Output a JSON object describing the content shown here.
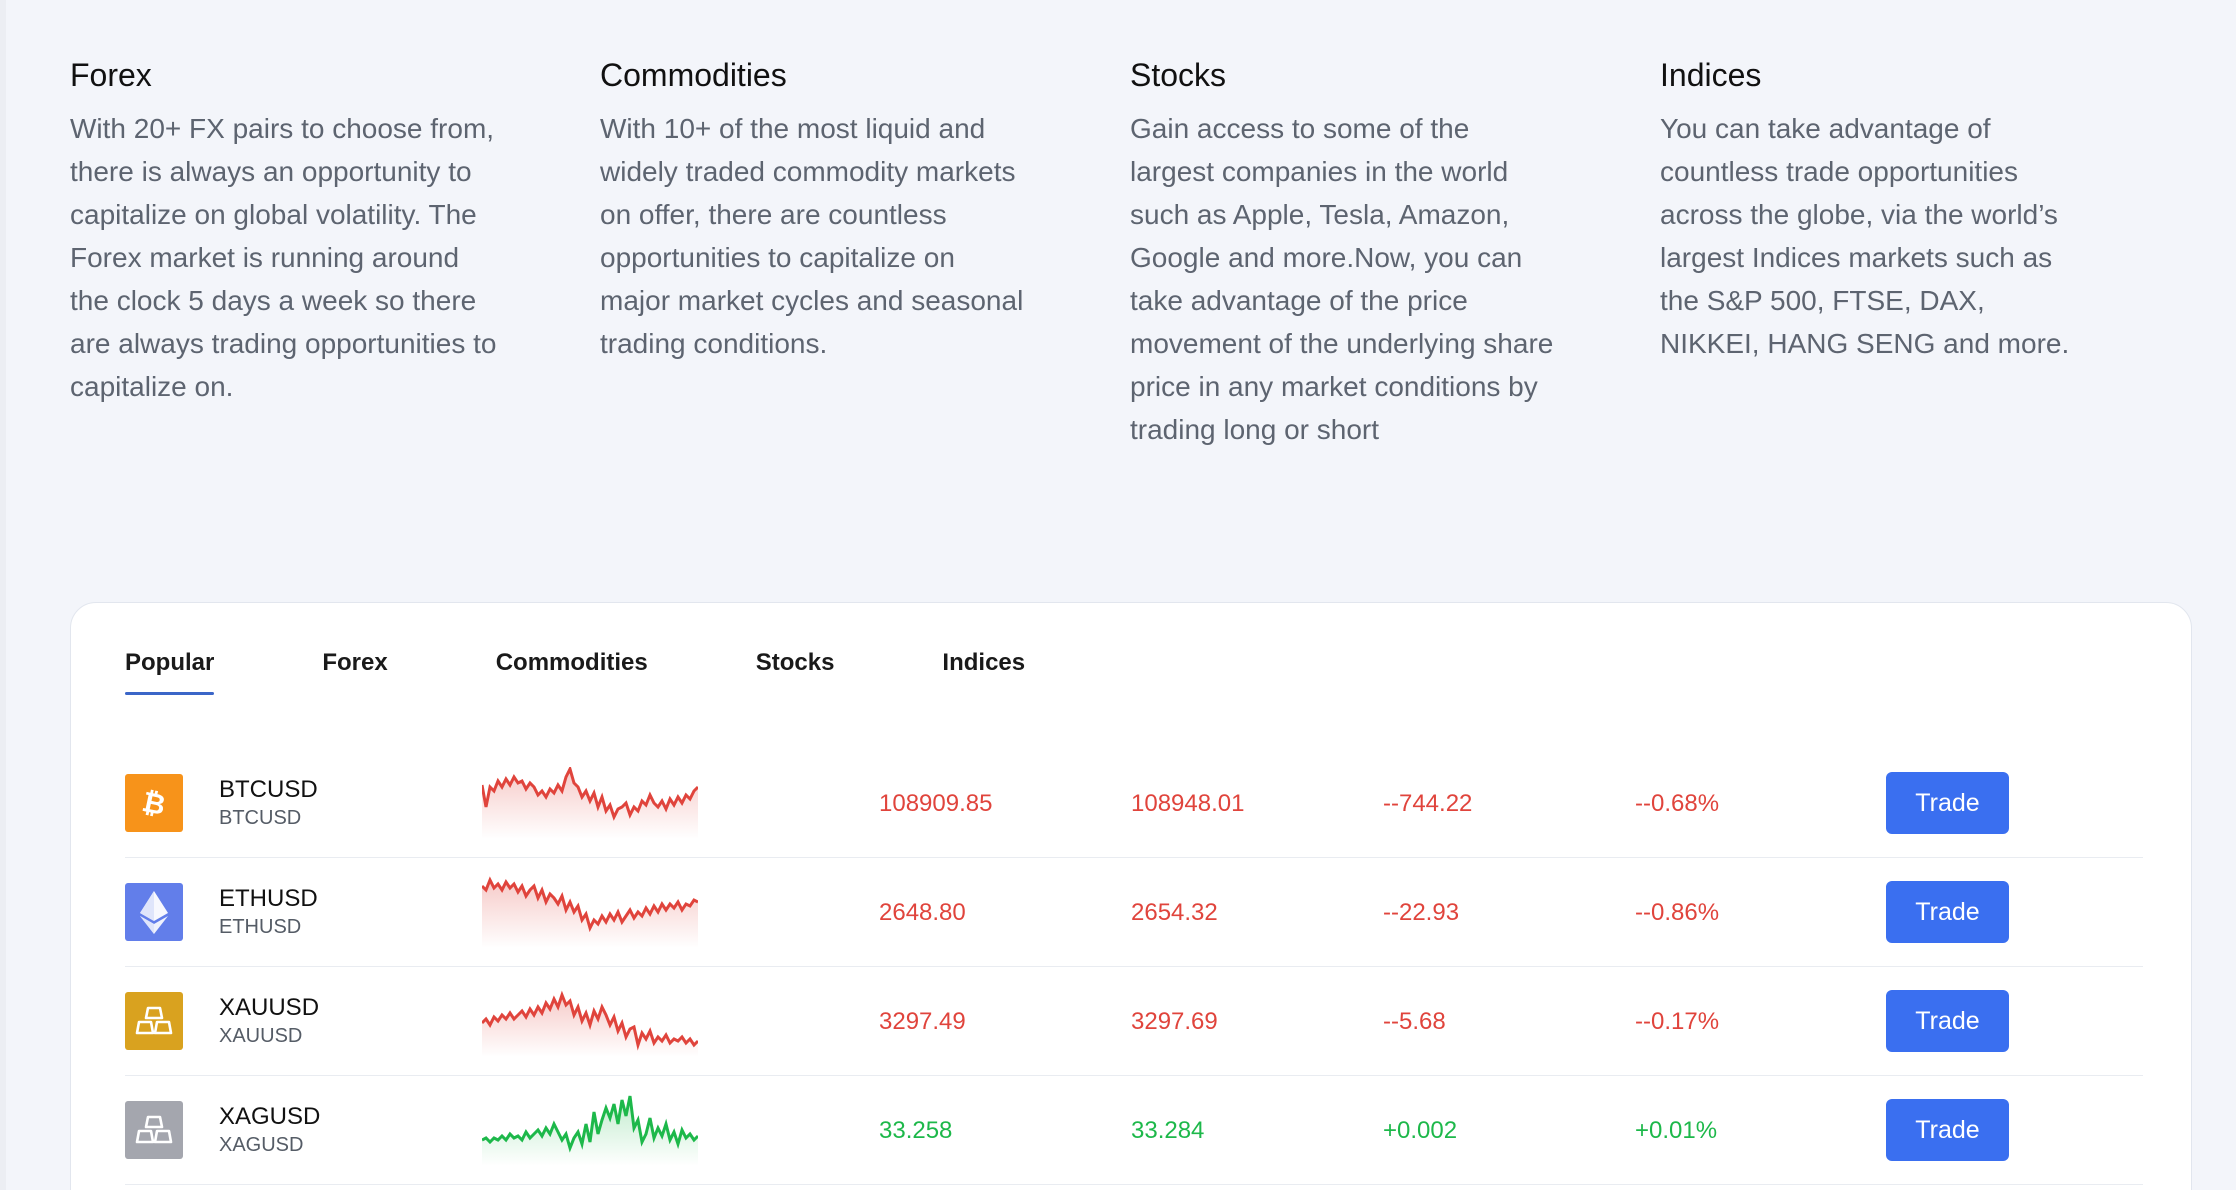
{
  "info": [
    {
      "title": "Forex",
      "text": "With 20+ FX pairs to choose from, there is always an opportunity to capitalize on global volatility. The Forex market is running around the clock 5 days a week so there are always trading opportunities to capitalize on."
    },
    {
      "title": "Commodities",
      "text": "With 10+ of the most liquid and widely traded commodity markets on offer, there are countless opportunities to capitalize on major market cycles and seasonal trading conditions."
    },
    {
      "title": "Stocks",
      "text": "Gain access to some of the largest companies in the world such as Apple, Tesla, Amazon, Google and more.Now, you can take advantage of the price movement of the underlying share price in any market conditions by trading long or short"
    },
    {
      "title": "Indices",
      "text": "You can take advantage of countless trade opportunities across the globe, via the world’s largest Indices markets such as the S&P 500, FTSE, DAX, NIKKEI, HANG SENG and more."
    }
  ],
  "tabs": [
    {
      "label": "Popular",
      "active": true
    },
    {
      "label": "Forex",
      "active": false
    },
    {
      "label": "Commodities",
      "active": false
    },
    {
      "label": "Stocks",
      "active": false
    },
    {
      "label": "Indices",
      "active": false
    }
  ],
  "colors": {
    "negative": "#e0443c",
    "positive": "#1db84a",
    "trade_button": "#3a6ff0",
    "tab_underline": "#3b66c8"
  },
  "markets": [
    {
      "symbol": "BTCUSD",
      "subtitle": "BTCUSD",
      "icon": "bitcoin-icon",
      "icon_color": "#f7931a",
      "bid": "108909.85",
      "ask": "108948.01",
      "change": "--744.22",
      "change_pct": "--0.68%",
      "direction": "down",
      "trade_label": "Trade"
    },
    {
      "symbol": "ETHUSD",
      "subtitle": "ETHUSD",
      "icon": "ethereum-icon",
      "icon_color": "#627eea",
      "bid": "2648.80",
      "ask": "2654.32",
      "change": "--22.93",
      "change_pct": "--0.86%",
      "direction": "down",
      "trade_label": "Trade"
    },
    {
      "symbol": "XAUUSD",
      "subtitle": "XAUUSD",
      "icon": "gold-bars-icon",
      "icon_color": "#d9a21f",
      "bid": "3297.49",
      "ask": "3297.69",
      "change": "--5.68",
      "change_pct": "--0.17%",
      "direction": "down",
      "trade_label": "Trade"
    },
    {
      "symbol": "XAGUSD",
      "subtitle": "XAGUSD",
      "icon": "silver-bars-icon",
      "icon_color": "#a4a6ae",
      "bid": "33.258",
      "ask": "33.284",
      "change": "+0.002",
      "change_pct": "+0.01%",
      "direction": "up",
      "trade_label": "Trade"
    }
  ]
}
